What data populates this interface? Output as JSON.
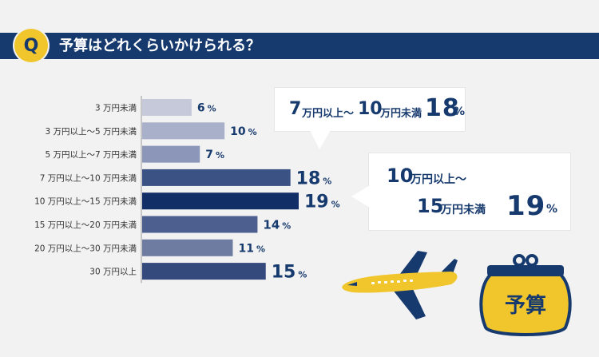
{
  "header": {
    "icon_letter": "Q",
    "title": "予算はどれくらいかけられる？"
  },
  "chart_data": {
    "type": "bar",
    "orientation": "horizontal",
    "categories": [
      "3 万円未満",
      "3 万円以上〜5 万円未満",
      "5 万円以上〜7 万円未満",
      "7 万円以上〜10 万円未満",
      "10 万円以上〜15 万円未満",
      "15 万円以上〜20 万円未満",
      "20 万円以上〜30 万円未満",
      "30 万円以上"
    ],
    "values": [
      6,
      10,
      7,
      18,
      19,
      14,
      11,
      15
    ],
    "value_labels": [
      "6",
      "10",
      "7",
      "18",
      "19",
      "14",
      "11",
      "15"
    ],
    "unit": "%",
    "bar_colors": [
      "#c5c9da",
      "#a9b0ca",
      "#8c96b8",
      "#3a5284",
      "#112f66",
      "#4d5f8e",
      "#6f7ca2",
      "#34497c"
    ],
    "title": "",
    "xlabel": "",
    "ylabel": "",
    "xlim": [
      0,
      19
    ]
  },
  "callouts": [
    {
      "line1_a": "7",
      "line1_b": "万円以上〜",
      "line1_c": "10",
      "line1_d": "万円未満",
      "percent": "18",
      "percent_sign": "%"
    },
    {
      "line1_a": "10",
      "line1_b": "万円以上〜",
      "line2_a": "15",
      "line2_b": "万円未満",
      "percent": "19",
      "percent_sign": "%"
    }
  ],
  "purse": {
    "label": "予算"
  },
  "colors": {
    "navy": "#173a6e",
    "yellow": "#f0c62c",
    "background": "#f2f2f2"
  },
  "icons": [
    "airplane-icon",
    "purse-icon"
  ]
}
